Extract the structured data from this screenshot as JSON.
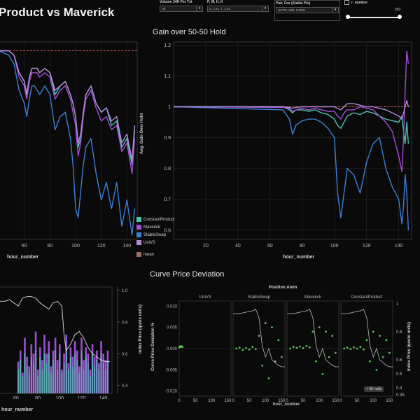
{
  "header": {
    "title": "Product vs Maverick",
    "controls": [
      {
        "label": "Volume 24H Per Txt",
        "value": "All"
      },
      {
        "label": "P, W, H, K",
        "value": "0, 1.01, 7, 1.01"
      },
      {
        "label": "Pair, Fee (Stable Pts)",
        "value": "USTN-USD, 0.0001"
      },
      {
        "label": "r_number",
        "value": "289"
      }
    ]
  },
  "legend": {
    "items": [
      {
        "name": "ConstantProduct",
        "color": "#4fc3b0"
      },
      {
        "name": "Maverick",
        "color": "#a64fd8"
      },
      {
        "name": "StableSwap",
        "color": "#3f7fd6"
      },
      {
        "name": "UniV3",
        "color": "#b58ad8"
      },
      {
        "name": "mean",
        "color": "#9a6b5e"
      }
    ]
  },
  "gain_panel": {
    "title": "Gain over 50-50 Hold",
    "ylabel": "Avg. Gain Over Hold",
    "xlabel": "hour_number",
    "left_xlabel": "hour_number"
  },
  "curve_panel": {
    "title": "Curve Price Deviation",
    "group_header": "Position.Amm",
    "facets": [
      "UniV3",
      "StableSwap",
      "Maverick",
      "ConstantProduct"
    ],
    "ylabel": "Curve Price Deviation %",
    "right_ylabel": "Index Price (quote units)",
    "xlabel": "hour_number",
    "badge": "+ 0K nulls"
  },
  "bottom_left": {
    "right_ylabel": "Index Price (quote units)",
    "xlabel": "hour_number"
  },
  "chart_data": [
    {
      "type": "line",
      "title": "Gain over 50-50 Hold",
      "xlabel": "hour_number",
      "ylabel": "Avg. Gain Over Hold",
      "xlim": [
        0,
        148
      ],
      "ylim": [
        0.57,
        1.21
      ],
      "x_ticks": [
        20,
        40,
        60,
        80,
        100,
        120,
        140
      ],
      "y_ticks": [
        0.6,
        0.7,
        0.8,
        0.9,
        1.0,
        1.1,
        1.2
      ],
      "reference_line": 1.0,
      "x": [
        0,
        68,
        72,
        74,
        76,
        80,
        84,
        88,
        92,
        96,
        100,
        102,
        104,
        106,
        108,
        112,
        116,
        120,
        124,
        128,
        132,
        136,
        140,
        142,
        143,
        144,
        145,
        146
      ],
      "series": [
        {
          "name": "ConstantProduct",
          "color": "#4fc3b0",
          "values": [
            1.0,
            1.0,
            0.99,
            0.98,
            0.99,
            0.99,
            0.985,
            0.99,
            0.98,
            0.975,
            0.96,
            0.94,
            0.93,
            0.95,
            0.97,
            0.98,
            0.975,
            0.985,
            0.98,
            0.97,
            0.96,
            0.955,
            0.95,
            0.97,
            0.92,
            0.88,
            0.95,
            0.88
          ]
        },
        {
          "name": "Maverick",
          "color": "#a64fd8",
          "values": [
            1.0,
            0.998,
            0.995,
            0.985,
            0.99,
            0.995,
            0.99,
            0.995,
            0.99,
            0.985,
            0.985,
            0.97,
            0.96,
            0.98,
            0.99,
            0.99,
            1.0,
            0.995,
            0.99,
            0.97,
            0.95,
            0.92,
            0.84,
            0.79,
            0.9,
            1.05,
            1.18,
            1.14
          ]
        },
        {
          "name": "StableSwap",
          "color": "#3f7fd6",
          "values": [
            1.0,
            0.99,
            0.96,
            0.91,
            0.94,
            0.955,
            0.96,
            0.96,
            0.95,
            0.93,
            0.9,
            0.72,
            0.64,
            0.72,
            0.8,
            0.78,
            0.72,
            0.82,
            0.88,
            0.9,
            0.8,
            0.74,
            0.7,
            0.62,
            0.68,
            0.78,
            0.72,
            0.6
          ]
        },
        {
          "name": "UniV3",
          "color": "#b58ad8",
          "values": [
            1.0,
            1.0,
            0.998,
            0.995,
            0.998,
            1.0,
            1.0,
            1.0,
            1.0,
            1.0,
            1.0,
            0.995,
            0.99,
            1.0,
            1.01,
            1.01,
            1.005,
            1.0,
            1.0,
            0.995,
            0.99,
            0.98,
            0.97,
            0.96,
            0.98,
            1.0,
            1.02,
            1.0
          ]
        }
      ]
    },
    {
      "type": "line",
      "title": "",
      "xlabel": "hour_number",
      "x_ticks": [
        60,
        80,
        100,
        120,
        140
      ],
      "xlim": [
        40,
        148
      ],
      "ylim": [
        0.57,
        1.02
      ],
      "reference_line": 1.0,
      "x": [
        40,
        48,
        52,
        56,
        60,
        62,
        64,
        66,
        68,
        70,
        72,
        76,
        80,
        84,
        88,
        92,
        96,
        98,
        100,
        102,
        104,
        106,
        108,
        112,
        116,
        120,
        124,
        128,
        132,
        136,
        140,
        144,
        146
      ],
      "series": [
        {
          "name": "ConstantProduct",
          "color": "#4fc3b0",
          "values": [
            1.0,
            1.0,
            0.99,
            0.95,
            0.93,
            0.9,
            0.94,
            0.96,
            0.96,
            0.96,
            0.95,
            0.96,
            0.95,
            0.9,
            0.92,
            0.93,
            0.9,
            0.88,
            0.85,
            0.78,
            0.8,
            0.86,
            0.9,
            0.92,
            0.88,
            0.86,
            0.87,
            0.83,
            0.84,
            0.78,
            0.8,
            0.74,
            0.82
          ]
        },
        {
          "name": "Maverick",
          "color": "#a64fd8",
          "values": [
            1.0,
            1.0,
            0.99,
            0.94,
            0.92,
            0.89,
            0.93,
            0.95,
            0.95,
            0.95,
            0.94,
            0.95,
            0.94,
            0.89,
            0.91,
            0.92,
            0.89,
            0.86,
            0.83,
            0.76,
            0.79,
            0.85,
            0.89,
            0.91,
            0.87,
            0.84,
            0.85,
            0.82,
            0.83,
            0.77,
            0.79,
            0.72,
            0.8
          ]
        },
        {
          "name": "StableSwap",
          "color": "#3f7fd6",
          "values": [
            1.0,
            0.99,
            0.97,
            0.91,
            0.88,
            0.85,
            0.89,
            0.92,
            0.92,
            0.91,
            0.9,
            0.92,
            0.9,
            0.82,
            0.85,
            0.86,
            0.8,
            0.74,
            0.64,
            0.62,
            0.68,
            0.74,
            0.78,
            0.8,
            0.72,
            0.66,
            0.7,
            0.64,
            0.7,
            0.6,
            0.66,
            0.58,
            0.64
          ]
        },
        {
          "name": "UniV3",
          "color": "#b58ad8",
          "values": [
            1.0,
            1.0,
            0.99,
            0.95,
            0.93,
            0.9,
            0.94,
            0.96,
            0.96,
            0.96,
            0.95,
            0.96,
            0.95,
            0.91,
            0.92,
            0.93,
            0.9,
            0.88,
            0.85,
            0.79,
            0.81,
            0.86,
            0.9,
            0.92,
            0.88,
            0.86,
            0.87,
            0.84,
            0.85,
            0.79,
            0.81,
            0.75,
            0.83
          ]
        }
      ]
    },
    {
      "type": "bar",
      "title": "",
      "xlabel": "hour_number",
      "ylabel": "Index Price (quote units)",
      "x_ticks": [
        60,
        80,
        100,
        120,
        140
      ],
      "xlim": [
        44,
        148
      ],
      "y_ticks": [
        0.4,
        0.6,
        0.8,
        1.0
      ],
      "ylim": [
        0.35,
        1.02
      ],
      "bar_x": [
        62,
        64,
        66,
        68,
        70,
        72,
        74,
        76,
        78,
        80,
        82,
        84,
        86,
        88,
        90,
        92,
        94,
        96,
        98,
        100,
        102,
        104,
        106,
        108,
        110,
        112,
        114,
        116,
        118,
        120,
        122,
        124,
        126,
        128,
        130,
        132,
        134,
        136,
        138,
        140,
        142,
        144
      ],
      "series": [
        {
          "name": "UniV3",
          "color": "#9a4fd0",
          "values": [
            0.55,
            0.62,
            0.48,
            0.7,
            0.58,
            0.52,
            0.66,
            0.6,
            0.74,
            0.5,
            0.64,
            0.56,
            0.72,
            0.6,
            0.68,
            0.52,
            0.62,
            0.7,
            0.56,
            0.66,
            0.5,
            0.6,
            0.72,
            0.54,
            0.64,
            0.58,
            0.68,
            0.62,
            0.52,
            0.7,
            0.56,
            0.64,
            0.6,
            0.5,
            0.66,
            0.58,
            0.62,
            0.54,
            0.68,
            0.6,
            0.56,
            0.62
          ]
        },
        {
          "name": "ConstantProduct",
          "color": "#4fc3b0",
          "values": [
            0.5,
            0.56,
            0.46,
            0.6,
            0.52,
            0.48,
            0.58,
            0.54,
            0.62,
            0.46,
            0.58,
            0.5,
            0.6,
            0.54,
            0.6,
            0.48,
            0.56,
            0.62,
            0.5,
            0.6,
            0.48,
            0.54,
            0.64,
            0.5,
            0.58,
            0.52,
            0.6,
            0.56,
            0.48,
            0.62,
            0.5,
            0.58,
            0.54,
            0.46,
            0.6,
            0.52,
            0.56,
            0.5,
            0.6,
            0.54,
            0.5,
            0.56
          ]
        }
      ],
      "index_price_x": [
        44,
        50,
        54,
        58,
        62,
        66,
        70,
        74,
        78,
        82,
        86,
        90,
        94,
        98,
        102,
        104,
        106,
        110,
        114,
        118,
        122,
        126,
        130,
        134,
        138,
        142,
        146
      ],
      "index_price": [
        0.93,
        0.93,
        0.94,
        0.92,
        0.9,
        0.95,
        0.96,
        0.96,
        0.95,
        0.92,
        0.9,
        0.88,
        0.92,
        0.93,
        0.9,
        0.72,
        0.62,
        0.66,
        0.72,
        0.74,
        0.7,
        0.64,
        0.6,
        0.58,
        0.56,
        0.55,
        0.55
      ]
    },
    {
      "type": "scatter",
      "title": "Curve Price Deviation",
      "xlabel": "hour_number",
      "ylabel": "Curve Price Deviation %",
      "x_ticks": [
        0,
        50,
        100,
        150
      ],
      "xlim": [
        0,
        160
      ],
      "y_ticks": [
        0.01,
        0.005,
        0.0,
        -0.005,
        -0.01
      ],
      "ylim": [
        -0.0112,
        0.0112
      ],
      "right_y_ticks": [
        1,
        0.8,
        0.6,
        0.5,
        0.4
      ],
      "right_ylim": [
        0.34,
        1.02
      ],
      "right_y_tick_labels": [
        "1",
        "0.8",
        "0.6",
        "0.5",
        "0.4",
        "0.35"
      ],
      "facets": [
        {
          "name": "UniV3",
          "x": [
            0,
            2,
            4,
            6,
            8,
            10
          ],
          "y": [
            0.0003,
            0.0005,
            0.0004,
            0.0006,
            0.0005,
            0.0004
          ]
        },
        {
          "name": "StableSwap",
          "x": [
            10,
            20,
            30,
            40,
            50,
            60,
            70,
            80,
            90,
            100,
            110,
            120,
            130,
            140,
            150
          ],
          "y": [
            0.0,
            0.0002,
            -0.0003,
            0.0001,
            -0.0002,
            0.0004,
            -0.0001,
            0.003,
            -0.004,
            0.006,
            -0.007,
            0.005,
            -0.003,
            0.002,
            -0.002
          ]
        },
        {
          "name": "Maverick",
          "x": [
            10,
            20,
            30,
            40,
            50,
            60,
            70,
            80,
            90,
            100,
            110,
            120,
            130,
            140,
            150
          ],
          "y": [
            0.0,
            0.0004,
            0.0002,
            0.0005,
            0.0001,
            0.0006,
            0.0003,
            0.004,
            -0.003,
            0.005,
            -0.006,
            0.004,
            -0.002,
            0.003,
            -0.001
          ]
        },
        {
          "name": "ConstantProduct",
          "x": [
            10,
            20,
            30,
            40,
            50,
            60,
            70,
            80,
            90,
            100,
            110,
            120,
            130,
            140,
            150
          ],
          "y": [
            0.0,
            0.0002,
            -0.0001,
            0.0003,
            0.0,
            0.0004,
            -0.0002,
            0.002,
            -0.003,
            0.004,
            -0.005,
            0.003,
            -0.002,
            0.002,
            -0.001
          ]
        }
      ],
      "index_price_x": [
        0,
        20,
        40,
        60,
        70,
        80,
        90,
        100,
        110,
        120,
        130,
        140,
        150,
        160
      ],
      "index_price": [
        0.93,
        0.93,
        0.94,
        0.95,
        0.96,
        0.9,
        0.7,
        0.62,
        0.68,
        0.6,
        0.58,
        0.56,
        0.55,
        0.55
      ]
    }
  ]
}
